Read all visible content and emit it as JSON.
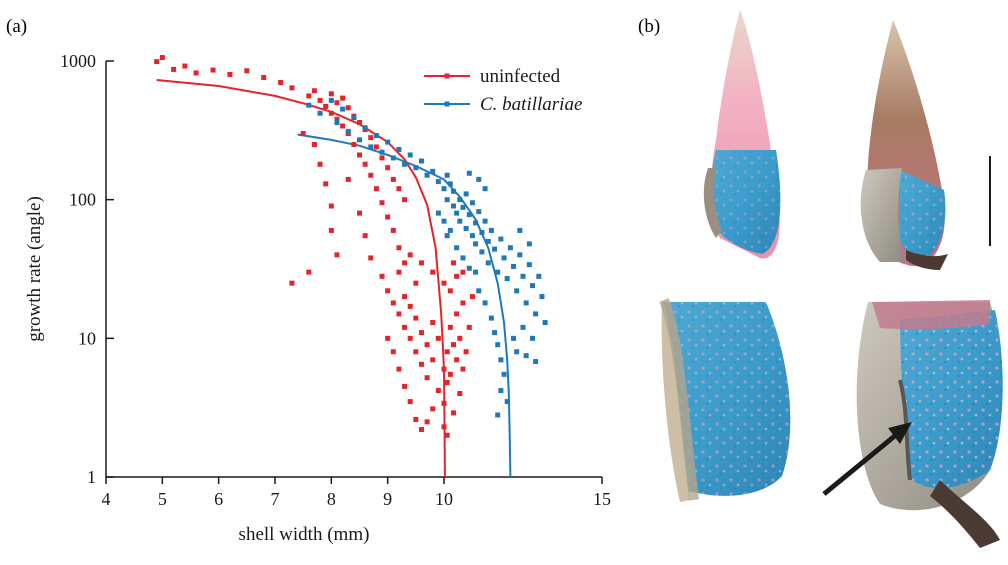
{
  "panel_a_label": "(a)",
  "panel_b_label": "(b)",
  "colors": {
    "uninfected": "#e3242b",
    "infected": "#1f78b8",
    "axis": "#1a1a1a"
  },
  "chart_data": {
    "type": "scatter",
    "title": "",
    "xlabel": "shell width (mm)",
    "ylabel": "growth rate (angle)",
    "xlim": [
      4,
      15
    ],
    "ylim": [
      1,
      1000
    ],
    "y_scale": "log",
    "x_ticks": [
      4,
      5,
      6,
      7,
      8,
      9,
      10,
      15
    ],
    "x_tick_labels": [
      "4",
      "5",
      "6",
      "7",
      "8",
      "9",
      "10",
      "15"
    ],
    "y_ticks": [
      1,
      10,
      100,
      1000
    ],
    "y_tick_labels": [
      "1",
      "10",
      "100",
      "1000"
    ],
    "legend_position": "top-right",
    "series": [
      {
        "name": "uninfected",
        "color": "#e3242b",
        "fit_curve": [
          [
            4.9,
            730
          ],
          [
            6.0,
            660
          ],
          [
            7.0,
            560
          ],
          [
            7.5,
            495
          ],
          [
            8.0,
            430
          ],
          [
            8.5,
            350
          ],
          [
            9.0,
            260
          ],
          [
            9.3,
            195
          ],
          [
            9.5,
            145
          ],
          [
            9.7,
            92
          ],
          [
            9.85,
            45
          ],
          [
            9.95,
            15
          ],
          [
            10.0,
            6
          ],
          [
            10.02,
            2
          ],
          [
            10.03,
            1
          ]
        ],
        "points": [
          [
            4.9,
            990
          ],
          [
            5.0,
            1060
          ],
          [
            5.2,
            870
          ],
          [
            5.4,
            920
          ],
          [
            5.6,
            820
          ],
          [
            5.9,
            860
          ],
          [
            6.2,
            800
          ],
          [
            6.5,
            850
          ],
          [
            6.8,
            760
          ],
          [
            7.1,
            700
          ],
          [
            7.3,
            640
          ],
          [
            7.6,
            560
          ],
          [
            7.7,
            610
          ],
          [
            7.8,
            520
          ],
          [
            7.9,
            470
          ],
          [
            8.0,
            580
          ],
          [
            8.0,
            420
          ],
          [
            8.1,
            380
          ],
          [
            8.1,
            500
          ],
          [
            8.2,
            540
          ],
          [
            8.2,
            340
          ],
          [
            8.3,
            460
          ],
          [
            8.3,
            300
          ],
          [
            8.4,
            400
          ],
          [
            8.4,
            250
          ],
          [
            8.5,
            360
          ],
          [
            8.5,
            210
          ],
          [
            8.6,
            320
          ],
          [
            8.6,
            180
          ],
          [
            8.7,
            280
          ],
          [
            8.7,
            150
          ],
          [
            8.8,
            240
          ],
          [
            8.8,
            120
          ],
          [
            8.9,
            200
          ],
          [
            8.9,
            95
          ],
          [
            9.0,
            170
          ],
          [
            9.0,
            75
          ],
          [
            9.1,
            140
          ],
          [
            9.1,
            60
          ],
          [
            9.2,
            120
          ],
          [
            9.2,
            45
          ],
          [
            9.3,
            100
          ],
          [
            9.3,
            35
          ],
          [
            7.5,
            300
          ],
          [
            7.7,
            250
          ],
          [
            7.8,
            180
          ],
          [
            7.9,
            130
          ],
          [
            8.0,
            90
          ],
          [
            8.0,
            60
          ],
          [
            8.1,
            40
          ],
          [
            7.6,
            30
          ],
          [
            7.3,
            25
          ],
          [
            8.3,
            140
          ],
          [
            8.5,
            80
          ],
          [
            8.6,
            55
          ],
          [
            8.7,
            38
          ],
          [
            8.9,
            28
          ],
          [
            9.0,
            22
          ],
          [
            9.1,
            18
          ],
          [
            9.2,
            15
          ],
          [
            9.3,
            12
          ],
          [
            9.3,
            20
          ],
          [
            9.4,
            10
          ],
          [
            9.4,
            17
          ],
          [
            9.5,
            8
          ],
          [
            9.5,
            14
          ],
          [
            9.6,
            11
          ],
          [
            9.6,
            6.5
          ],
          [
            9.7,
            9
          ],
          [
            9.7,
            5.2
          ],
          [
            9.8,
            13
          ],
          [
            9.8,
            7
          ],
          [
            9.9,
            4.2
          ],
          [
            9.9,
            10
          ],
          [
            10.0,
            6
          ],
          [
            10.0,
            3.4
          ],
          [
            10.1,
            8
          ],
          [
            10.1,
            4.8
          ],
          [
            10.2,
            12
          ],
          [
            10.2,
            5.5
          ],
          [
            10.3,
            9
          ],
          [
            10.3,
            2.9
          ],
          [
            10.4,
            7
          ],
          [
            10.4,
            15
          ],
          [
            10.5,
            4
          ],
          [
            10.5,
            10
          ],
          [
            10.6,
            6
          ],
          [
            10.6,
            18
          ],
          [
            10.7,
            8
          ],
          [
            10.8,
            12
          ],
          [
            10.9,
            20
          ],
          [
            9.0,
            10
          ],
          [
            9.1,
            8
          ],
          [
            9.2,
            6
          ],
          [
            9.3,
            4.5
          ],
          [
            9.4,
            3.5
          ],
          [
            9.5,
            2.6
          ],
          [
            9.6,
            2.2
          ],
          [
            9.7,
            2.5
          ],
          [
            9.8,
            3.1
          ],
          [
            10.0,
            2.3
          ],
          [
            10.1,
            2.0
          ],
          [
            9.2,
            30
          ],
          [
            9.4,
            40
          ],
          [
            9.5,
            25
          ],
          [
            9.6,
            35
          ],
          [
            9.8,
            30
          ],
          [
            10.0,
            25
          ],
          [
            10.2,
            22
          ],
          [
            10.4,
            28
          ],
          [
            10.6,
            30
          ],
          [
            10.3,
            35
          ]
        ]
      },
      {
        "name": "C. batillariae",
        "color": "#1f78b8",
        "fit_curve": [
          [
            7.4,
            295
          ],
          [
            8.0,
            270
          ],
          [
            8.5,
            245
          ],
          [
            9.0,
            210
          ],
          [
            9.5,
            175
          ],
          [
            10.0,
            140
          ],
          [
            10.5,
            105
          ],
          [
            11.0,
            72
          ],
          [
            11.4,
            45
          ],
          [
            11.7,
            25
          ],
          [
            11.9,
            13
          ],
          [
            12.0,
            7
          ],
          [
            12.05,
            4
          ],
          [
            12.08,
            2
          ],
          [
            12.1,
            1
          ]
        ],
        "points": [
          [
            7.6,
            480
          ],
          [
            7.8,
            420
          ],
          [
            8.0,
            520
          ],
          [
            8.1,
            360
          ],
          [
            8.2,
            450
          ],
          [
            8.3,
            310
          ],
          [
            8.4,
            390
          ],
          [
            8.5,
            270
          ],
          [
            8.6,
            330
          ],
          [
            8.7,
            240
          ],
          [
            8.8,
            290
          ],
          [
            8.9,
            220
          ],
          [
            9.0,
            260
          ],
          [
            9.1,
            200
          ],
          [
            9.2,
            230
          ],
          [
            9.3,
            180
          ],
          [
            9.4,
            210
          ],
          [
            9.5,
            170
          ],
          [
            9.6,
            190
          ],
          [
            9.7,
            150
          ],
          [
            9.8,
            160
          ],
          [
            9.9,
            135
          ],
          [
            10.0,
            120
          ],
          [
            10.1,
            150
          ],
          [
            10.1,
            100
          ],
          [
            10.2,
            130
          ],
          [
            10.3,
            90
          ],
          [
            10.3,
            115
          ],
          [
            10.4,
            80
          ],
          [
            10.5,
            100
          ],
          [
            10.5,
            70
          ],
          [
            10.6,
            88
          ],
          [
            10.7,
            62
          ],
          [
            10.7,
            110
          ],
          [
            10.8,
            78
          ],
          [
            10.9,
            55
          ],
          [
            10.9,
            95
          ],
          [
            11.0,
            68
          ],
          [
            11.0,
            48
          ],
          [
            11.1,
            82
          ],
          [
            11.2,
            58
          ],
          [
            11.2,
            42
          ],
          [
            11.3,
            70
          ],
          [
            11.4,
            50
          ],
          [
            11.4,
            35
          ],
          [
            11.5,
            60
          ],
          [
            11.6,
            44
          ],
          [
            11.7,
            30
          ],
          [
            11.8,
            52
          ],
          [
            11.9,
            38
          ],
          [
            12.0,
            27
          ],
          [
            12.1,
            45
          ],
          [
            12.2,
            33
          ],
          [
            12.3,
            22
          ],
          [
            12.4,
            40
          ],
          [
            12.5,
            28
          ],
          [
            12.6,
            18
          ],
          [
            12.7,
            34
          ],
          [
            12.8,
            24
          ],
          [
            12.9,
            15
          ],
          [
            13.0,
            28
          ],
          [
            13.1,
            20
          ],
          [
            13.2,
            13
          ],
          [
            11.0,
            30
          ],
          [
            11.1,
            22
          ],
          [
            11.3,
            18
          ],
          [
            11.5,
            14
          ],
          [
            11.6,
            11
          ],
          [
            11.7,
            9
          ],
          [
            11.8,
            7
          ],
          [
            11.9,
            5.5
          ],
          [
            11.8,
            4.2
          ],
          [
            12.0,
            3.5
          ],
          [
            11.7,
            2.8
          ],
          [
            12.2,
            10
          ],
          [
            12.3,
            8
          ],
          [
            12.5,
            12
          ],
          [
            12.6,
            7.5
          ],
          [
            12.8,
            10
          ],
          [
            12.9,
            6.8
          ],
          [
            10.2,
            60
          ],
          [
            10.4,
            45
          ],
          [
            10.6,
            38
          ],
          [
            10.8,
            32
          ],
          [
            10.0,
            70
          ],
          [
            9.9,
            80
          ],
          [
            10.1,
            55
          ],
          [
            11.3,
            120
          ],
          [
            11.1,
            140
          ],
          [
            10.8,
            155
          ],
          [
            12.4,
            60
          ],
          [
            12.7,
            48
          ]
        ]
      }
    ]
  }
}
